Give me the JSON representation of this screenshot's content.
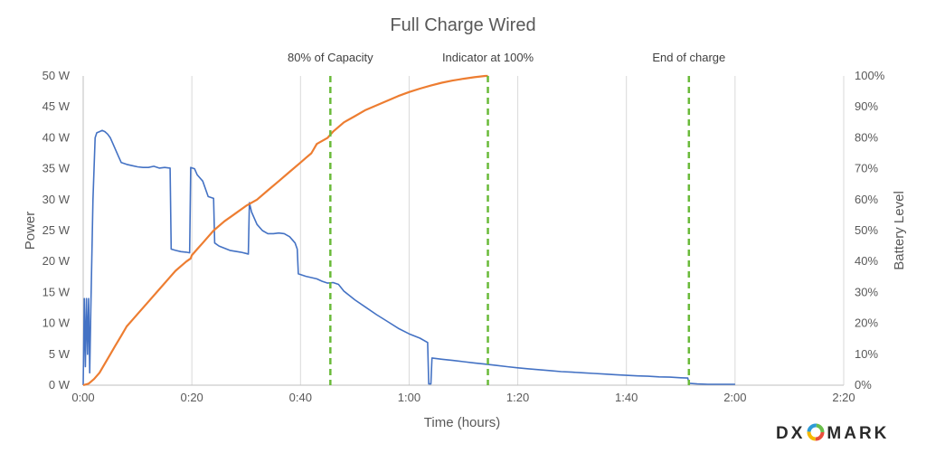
{
  "chart_data": {
    "type": "line",
    "title": "Full Charge Wired",
    "xlabel": "Time (hours)",
    "ylabel_left": "Power",
    "ylabel_right": "Battery Level",
    "xlim": [
      0,
      140
    ],
    "ylim_left": [
      0,
      50
    ],
    "ylim_right": [
      0,
      100
    ],
    "x_ticks": [
      0,
      20,
      40,
      60,
      80,
      100,
      120,
      140
    ],
    "x_tick_labels": [
      "0:00",
      "0:20",
      "0:40",
      "1:00",
      "1:20",
      "1:40",
      "2:00",
      "2:20"
    ],
    "y_left_ticks": [
      0,
      5,
      10,
      15,
      20,
      25,
      30,
      35,
      40,
      45,
      50
    ],
    "y_left_tick_labels": [
      "0 W",
      "5 W",
      "10 W",
      "15 W",
      "20 W",
      "25 W",
      "30 W",
      "35 W",
      "40 W",
      "45 W",
      "50 W"
    ],
    "y_right_ticks": [
      0,
      10,
      20,
      30,
      40,
      50,
      60,
      70,
      80,
      90,
      100
    ],
    "y_right_tick_labels": [
      "0%",
      "10%",
      "20%",
      "30%",
      "40%",
      "50%",
      "60%",
      "70%",
      "80%",
      "90%",
      "100%"
    ],
    "grid": "vertical",
    "markers": [
      {
        "x": 45.5,
        "label": "80% of Capacity"
      },
      {
        "x": 74.5,
        "label": "Indicator at 100%"
      },
      {
        "x": 111.5,
        "label": "End of charge"
      }
    ],
    "series": [
      {
        "axis": "left",
        "color": "#4472c4",
        "points": [
          [
            0,
            0
          ],
          [
            0.2,
            14
          ],
          [
            0.4,
            3
          ],
          [
            0.6,
            14
          ],
          [
            0.8,
            5
          ],
          [
            1,
            14
          ],
          [
            1.2,
            2
          ],
          [
            1.4,
            12
          ],
          [
            1.8,
            30
          ],
          [
            2.2,
            40
          ],
          [
            2.5,
            40.8
          ],
          [
            3,
            41
          ],
          [
            3.5,
            41.2
          ],
          [
            4,
            41
          ],
          [
            4.5,
            40.6
          ],
          [
            5,
            40
          ],
          [
            5.5,
            39
          ],
          [
            6,
            38
          ],
          [
            6.5,
            37
          ],
          [
            7,
            36
          ],
          [
            8,
            35.7
          ],
          [
            9,
            35.5
          ],
          [
            10,
            35.3
          ],
          [
            11,
            35.2
          ],
          [
            12,
            35.2
          ],
          [
            13,
            35.4
          ],
          [
            14,
            35.1
          ],
          [
            15,
            35.2
          ],
          [
            16,
            35.1
          ],
          [
            16.2,
            22
          ],
          [
            17,
            21.8
          ],
          [
            18,
            21.6
          ],
          [
            19,
            21.5
          ],
          [
            19.6,
            21.4
          ],
          [
            19.8,
            35.2
          ],
          [
            20.5,
            35
          ],
          [
            21,
            34
          ],
          [
            22,
            33
          ],
          [
            23,
            30.5
          ],
          [
            24,
            30.2
          ],
          [
            24.2,
            23
          ],
          [
            25,
            22.5
          ],
          [
            27,
            21.8
          ],
          [
            29,
            21.5
          ],
          [
            30,
            21.3
          ],
          [
            30.4,
            21.2
          ],
          [
            30.6,
            29.5
          ],
          [
            31,
            28
          ],
          [
            32,
            26
          ],
          [
            33,
            25
          ],
          [
            34,
            24.5
          ],
          [
            35,
            24.5
          ],
          [
            36,
            24.6
          ],
          [
            37,
            24.5
          ],
          [
            38,
            24
          ],
          [
            39,
            23
          ],
          [
            39.4,
            22
          ],
          [
            39.6,
            18
          ],
          [
            40,
            17.9
          ],
          [
            41,
            17.6
          ],
          [
            42,
            17.4
          ],
          [
            43,
            17.2
          ],
          [
            44,
            16.8
          ],
          [
            45,
            16.5
          ],
          [
            46,
            16.6
          ],
          [
            47,
            16.3
          ],
          [
            48,
            15.2
          ],
          [
            49,
            14.5
          ],
          [
            50,
            13.8
          ],
          [
            52,
            12.6
          ],
          [
            54,
            11.4
          ],
          [
            56,
            10.3
          ],
          [
            58,
            9.2
          ],
          [
            60,
            8.3
          ],
          [
            62,
            7.6
          ],
          [
            63.4,
            6.9
          ],
          [
            63.6,
            0.2
          ],
          [
            64,
            0.2
          ],
          [
            64.2,
            4.4
          ],
          [
            66,
            4.2
          ],
          [
            68,
            4
          ],
          [
            70,
            3.8
          ],
          [
            72,
            3.6
          ],
          [
            74,
            3.4
          ],
          [
            76,
            3.2
          ],
          [
            78,
            3
          ],
          [
            80,
            2.8
          ],
          [
            82,
            2.65
          ],
          [
            84,
            2.5
          ],
          [
            86,
            2.35
          ],
          [
            88,
            2.2
          ],
          [
            90,
            2.1
          ],
          [
            92,
            2
          ],
          [
            94,
            1.9
          ],
          [
            96,
            1.8
          ],
          [
            98,
            1.7
          ],
          [
            100,
            1.6
          ],
          [
            102,
            1.5
          ],
          [
            104,
            1.45
          ],
          [
            106,
            1.35
          ],
          [
            108,
            1.3
          ],
          [
            110,
            1.2
          ],
          [
            111.3,
            1.15
          ],
          [
            111.5,
            0.3
          ],
          [
            113,
            0.2
          ],
          [
            115,
            0.15
          ],
          [
            120,
            0.15
          ]
        ]
      },
      {
        "axis": "right",
        "color": "#ed7d31",
        "points": [
          [
            0,
            0
          ],
          [
            1,
            0.5
          ],
          [
            2,
            2
          ],
          [
            3,
            4
          ],
          [
            4,
            7
          ],
          [
            5,
            10
          ],
          [
            6,
            13
          ],
          [
            7,
            16
          ],
          [
            8,
            19
          ],
          [
            9,
            21
          ],
          [
            10,
            23
          ],
          [
            12,
            27
          ],
          [
            14,
            31
          ],
          [
            16,
            35
          ],
          [
            17,
            37
          ],
          [
            18,
            38.5
          ],
          [
            19,
            40
          ],
          [
            19.8,
            41
          ],
          [
            20,
            42
          ],
          [
            21,
            44
          ],
          [
            22,
            46
          ],
          [
            23,
            48
          ],
          [
            24,
            50
          ],
          [
            26,
            53
          ],
          [
            28,
            55.5
          ],
          [
            30,
            58
          ],
          [
            32,
            60
          ],
          [
            34,
            63
          ],
          [
            36,
            66
          ],
          [
            38,
            69
          ],
          [
            40,
            72
          ],
          [
            41,
            73.5
          ],
          [
            42,
            75
          ],
          [
            43,
            78
          ],
          [
            45,
            80
          ],
          [
            46,
            82
          ],
          [
            47,
            83.5
          ],
          [
            48,
            85
          ],
          [
            50,
            87
          ],
          [
            52,
            89
          ],
          [
            54,
            90.5
          ],
          [
            56,
            92
          ],
          [
            58,
            93.5
          ],
          [
            60,
            94.8
          ],
          [
            62,
            95.9
          ],
          [
            64,
            96.9
          ],
          [
            66,
            97.8
          ],
          [
            68,
            98.5
          ],
          [
            70,
            99.1
          ],
          [
            72,
            99.6
          ],
          [
            74,
            100
          ],
          [
            74.5,
            100
          ]
        ]
      }
    ]
  },
  "brand": {
    "logo_left": "DX",
    "logo_right": "MARK"
  }
}
